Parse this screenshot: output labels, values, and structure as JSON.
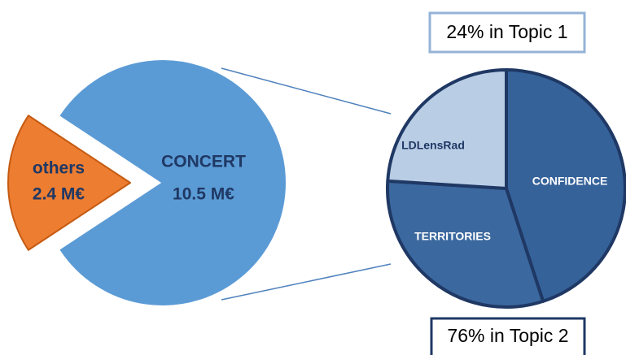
{
  "chart_data": [
    {
      "type": "pie",
      "categories": [
        "others",
        "CONCERT"
      ],
      "values": [
        2.4,
        10.5
      ],
      "value_labels": [
        "2.4 M€",
        "10.5 M€"
      ],
      "colors": [
        "#ed7d31",
        "#5b9bd5"
      ]
    },
    {
      "type": "pie",
      "categories": [
        "CONFIDENCE",
        "TERRITORIES",
        "LDLensRad"
      ],
      "values": [
        45,
        31,
        24
      ],
      "colors": [
        "#36629a",
        "#3b689f",
        "#b9cde5"
      ],
      "annotations": [
        "24% in Topic 1",
        "76% in Topic 2"
      ]
    }
  ]
}
